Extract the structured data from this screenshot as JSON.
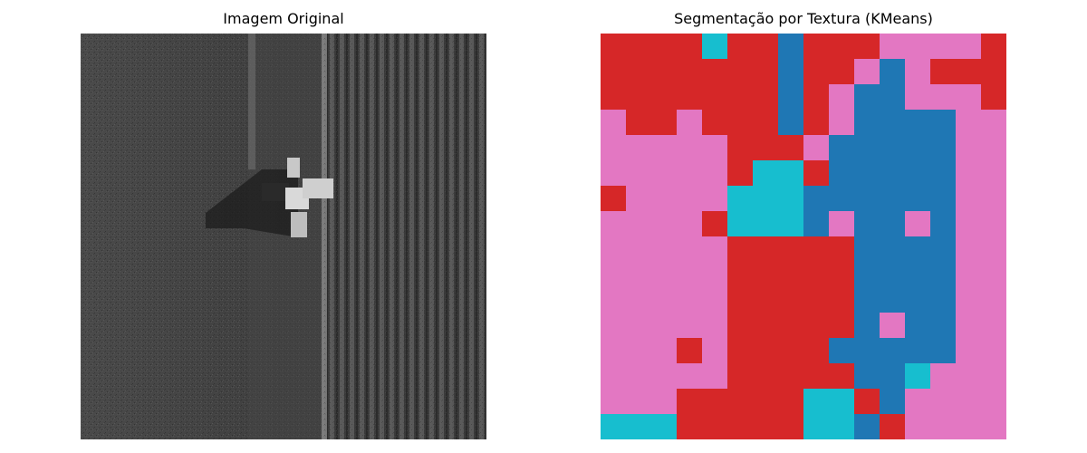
{
  "chart_data": [
    {
      "type": "image",
      "title": "Imagem Original",
      "content": "aerial grayscale photo of a farm field with a tractor/harvester; left half smooth textured soil, right half vertical crop row stripes"
    },
    {
      "type": "heatmap",
      "title": "Segmentação por Textura (KMeans)",
      "colors": {
        "0": "#d62728",
        "1": "#e377c2",
        "2": "#1f77b4",
        "3": "#17becf"
      },
      "grid_rows": 16,
      "grid_cols": 16,
      "labels": [
        "0000300200011110",
        "0000000200121000",
        "0000000201221110",
        "1001000201222211",
        "1111100012222211",
        "1111103302222211",
        "0111133322222211",
        "1111033321221211",
        "1111100000222211",
        "1111100000222211",
        "1111100000222211",
        "1111100000212211",
        "1110100002222211",
        "1111100000223111",
        "1110000033021111",
        "3330000033201111"
      ]
    }
  ]
}
